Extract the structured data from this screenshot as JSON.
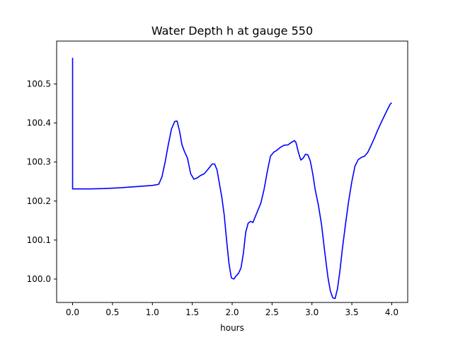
{
  "chart_data": {
    "type": "line",
    "title": "Water Depth h at gauge 550",
    "xlabel": "hours",
    "ylabel": "",
    "xlim": [
      -0.2,
      4.2
    ],
    "ylim": [
      99.94,
      100.61
    ],
    "xticks": [
      0.0,
      0.5,
      1.0,
      1.5,
      2.0,
      2.5,
      3.0,
      3.5,
      4.0
    ],
    "xtick_labels": [
      "0.0",
      "0.5",
      "1.0",
      "1.5",
      "2.0",
      "2.5",
      "3.0",
      "3.5",
      "4.0"
    ],
    "yticks": [
      100.0,
      100.1,
      100.2,
      100.3,
      100.4,
      100.5
    ],
    "ytick_labels": [
      "100.0",
      "100.1",
      "100.2",
      "100.3",
      "100.4",
      "100.5"
    ],
    "grid": false,
    "series": [
      {
        "color": "#0000ff",
        "x": [
          0.0,
          0.0,
          0.0,
          0.2,
          0.4,
          0.6,
          0.8,
          1.0,
          1.08,
          1.12,
          1.16,
          1.2,
          1.24,
          1.28,
          1.31,
          1.34,
          1.37,
          1.4,
          1.44,
          1.48,
          1.52,
          1.56,
          1.6,
          1.65,
          1.7,
          1.75,
          1.78,
          1.81,
          1.84,
          1.87,
          1.9,
          1.93,
          1.96,
          1.99,
          2.02,
          2.05,
          2.08,
          2.11,
          2.14,
          2.17,
          2.2,
          2.23,
          2.26,
          2.29,
          2.32,
          2.36,
          2.4,
          2.44,
          2.48,
          2.52,
          2.56,
          2.6,
          2.65,
          2.7,
          2.74,
          2.78,
          2.8,
          2.83,
          2.86,
          2.89,
          2.92,
          2.95,
          2.98,
          3.01,
          3.04,
          3.08,
          3.12,
          3.16,
          3.2,
          3.23,
          3.26,
          3.29,
          3.32,
          3.35,
          3.38,
          3.42,
          3.46,
          3.5,
          3.54,
          3.58,
          3.62,
          3.66,
          3.7,
          3.74,
          3.78,
          3.82,
          3.86,
          3.9,
          3.94,
          3.98,
          4.0
        ],
        "y": [
          100.567,
          100.5,
          100.231,
          100.231,
          100.232,
          100.234,
          100.237,
          100.24,
          100.243,
          100.262,
          100.3,
          100.345,
          100.385,
          100.404,
          100.405,
          100.38,
          100.345,
          100.328,
          100.31,
          100.27,
          100.256,
          100.259,
          100.265,
          100.27,
          100.282,
          100.295,
          100.295,
          100.28,
          100.245,
          100.21,
          100.165,
          100.1,
          100.04,
          100.003,
          100.0,
          100.008,
          100.015,
          100.028,
          100.065,
          100.12,
          100.143,
          100.148,
          100.145,
          100.16,
          100.175,
          100.195,
          100.23,
          100.275,
          100.315,
          100.325,
          100.33,
          100.337,
          100.343,
          100.344,
          100.35,
          100.355,
          100.35,
          100.325,
          100.305,
          100.31,
          100.32,
          100.318,
          100.302,
          100.27,
          100.23,
          100.19,
          100.14,
          100.07,
          100.005,
          99.97,
          99.952,
          99.95,
          99.975,
          100.02,
          100.075,
          100.14,
          100.2,
          100.25,
          100.29,
          100.306,
          100.312,
          100.315,
          100.325,
          100.342,
          100.36,
          100.38,
          100.398,
          100.415,
          100.432,
          100.448,
          100.452
        ]
      }
    ]
  }
}
